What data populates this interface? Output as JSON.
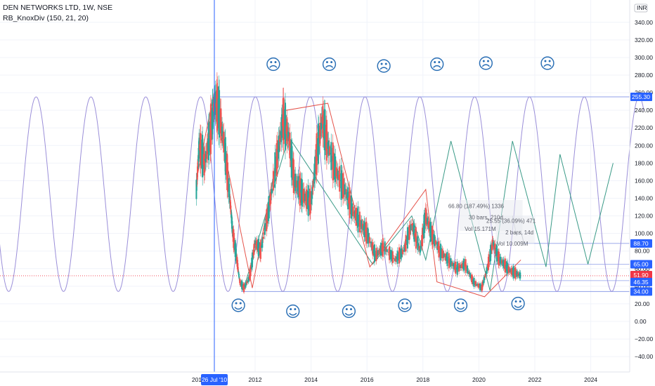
{
  "header": {
    "symbol_line": "DEN NETWORKS LTD, 1W, NSE",
    "indicator_line": "RB_KnoxDiv (150, 21, 20)"
  },
  "chart_data": {
    "type": "line",
    "title": "DEN NETWORKS LTD, 1W, NSE",
    "currency_label": "INR",
    "y_ticks": [
      "340.00",
      "320.00",
      "300.00",
      "280.00",
      "260.00",
      "240.00",
      "220.00",
      "200.00",
      "180.00",
      "160.00",
      "140.00",
      "120.00",
      "100.00",
      "80.00",
      "60.00",
      "40.00",
      "20.00",
      "0.00",
      "−20.00",
      "−40.00"
    ],
    "x_ticks": [
      "201",
      "2012",
      "2014",
      "2016",
      "2018",
      "2020",
      "2022",
      "2024"
    ],
    "crosshair_date": "26 Jul '10",
    "price_tags": [
      {
        "label": "255.30",
        "value": 255.3,
        "color": "#2962ff"
      },
      {
        "label": "88.70",
        "value": 88.7,
        "color": "#2962ff"
      },
      {
        "label": "65.00",
        "value": 65.0,
        "color": "#2962ff"
      },
      {
        "label": "51.90",
        "value": 51.9,
        "color": "#f23645"
      },
      {
        "label": "46.35",
        "value": 46.35,
        "color": "#2962ff"
      },
      {
        "label": "34.00",
        "value": 34.0,
        "color": "#2962ff"
      }
    ],
    "price_series": [
      [
        2009.9,
        150
      ],
      [
        2010.0,
        200
      ],
      [
        2010.2,
        180
      ],
      [
        2010.4,
        215
      ],
      [
        2010.55,
        250
      ],
      [
        2010.7,
        240
      ],
      [
        2010.9,
        200
      ],
      [
        2011.1,
        140
      ],
      [
        2011.2,
        100
      ],
      [
        2011.35,
        70
      ],
      [
        2011.45,
        45
      ],
      [
        2011.6,
        38
      ],
      [
        2011.8,
        50
      ],
      [
        2012.0,
        90
      ],
      [
        2012.2,
        80
      ],
      [
        2012.5,
        130
      ],
      [
        2012.8,
        190
      ],
      [
        2013.0,
        230
      ],
      [
        2013.2,
        210
      ],
      [
        2013.4,
        160
      ],
      [
        2013.6,
        150
      ],
      [
        2013.8,
        140
      ],
      [
        2014.0,
        135
      ],
      [
        2014.2,
        190
      ],
      [
        2014.4,
        230
      ],
      [
        2014.6,
        200
      ],
      [
        2014.9,
        170
      ],
      [
        2015.2,
        150
      ],
      [
        2015.5,
        125
      ],
      [
        2015.8,
        110
      ],
      [
        2016.0,
        100
      ],
      [
        2016.3,
        75
      ],
      [
        2016.6,
        85
      ],
      [
        2017.0,
        70
      ],
      [
        2017.3,
        80
      ],
      [
        2017.6,
        110
      ],
      [
        2017.9,
        80
      ],
      [
        2018.1,
        120
      ],
      [
        2018.3,
        100
      ],
      [
        2018.6,
        80
      ],
      [
        2018.9,
        70
      ],
      [
        2019.2,
        60
      ],
      [
        2019.5,
        65
      ],
      [
        2019.8,
        45
      ],
      [
        2020.1,
        38
      ],
      [
        2020.3,
        60
      ],
      [
        2020.5,
        90
      ],
      [
        2020.7,
        72
      ],
      [
        2020.9,
        65
      ],
      [
        2021.1,
        58
      ],
      [
        2021.3,
        55
      ],
      [
        2021.5,
        51.9
      ]
    ],
    "sine_wave": {
      "amplitude_high": 255.3,
      "amplitude_low": 34.0,
      "period_years": 1.96,
      "peak_year": 2010.05
    },
    "green_zigzag": [
      [
        2011.6,
        38
      ],
      [
        2013.2,
        210
      ],
      [
        2016.2,
        65
      ],
      [
        2017.6,
        120
      ],
      [
        2018.1,
        70
      ],
      [
        2019.0,
        205
      ],
      [
        2020.4,
        35
      ],
      [
        2021.2,
        205
      ],
      [
        2022.4,
        62
      ],
      [
        2022.9,
        190
      ],
      [
        2023.9,
        65
      ],
      [
        2024.8,
        180
      ]
    ],
    "red_zigzag": [
      [
        2009.9,
        160
      ],
      [
        2010.5,
        255.3
      ],
      [
        2011.9,
        38
      ],
      [
        2013.1,
        240
      ],
      [
        2014.6,
        248
      ],
      [
        2016.1,
        62
      ],
      [
        2018.1,
        150
      ],
      [
        2018.5,
        45
      ],
      [
        2020.2,
        28
      ],
      [
        2021.5,
        70
      ]
    ],
    "gray_projection": [
      [
        2021.2,
        120
      ],
      [
        2021.35,
        98
      ],
      [
        2021.5,
        103
      ],
      [
        2021.6,
        90
      ]
    ],
    "annotations": [
      {
        "text": "66.80 (187.49%) 1336",
        "x": 2019.9,
        "y": 129
      },
      {
        "text": "30 bars, 210d",
        "x": 2020.25,
        "y": 116
      },
      {
        "text": "Vol 15.171M",
        "x": 2020.05,
        "y": 103
      },
      {
        "text": "25.55 (36.09%) 471",
        "x": 2021.15,
        "y": 112
      },
      {
        "text": "2 bars, 14d",
        "x": 2021.45,
        "y": 99
      },
      {
        "text": "Vol 10.009M",
        "x": 2021.2,
        "y": 86
      }
    ],
    "sad_face_positions": [
      [
        2012.65,
        286
      ],
      [
        2014.65,
        286
      ],
      [
        2016.6,
        284
      ],
      [
        2018.5,
        286
      ],
      [
        2020.25,
        287
      ],
      [
        2022.45,
        287
      ]
    ],
    "happy_face_positions": [
      [
        2011.4,
        12
      ],
      [
        2013.35,
        5
      ],
      [
        2015.35,
        5
      ],
      [
        2017.35,
        12
      ],
      [
        2019.35,
        12
      ],
      [
        2021.4,
        14
      ]
    ],
    "sad_glyph": "☹",
    "happy_glyph": "☺"
  }
}
